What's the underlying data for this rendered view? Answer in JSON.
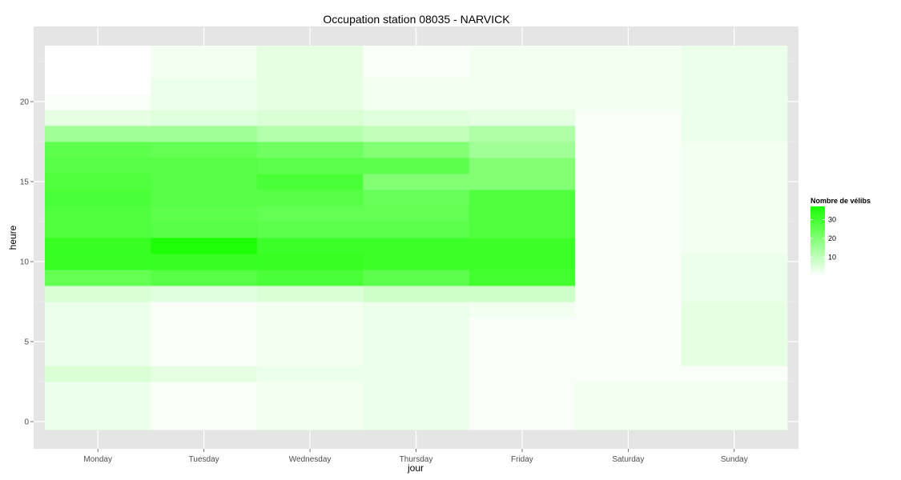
{
  "chart_data": {
    "type": "heatmap",
    "title": "Occupation station 08035 - NARVICK",
    "xlabel": "jour",
    "ylabel": "heure",
    "x_categories": [
      "Monday",
      "Tuesday",
      "Wednesday",
      "Thursday",
      "Friday",
      "Saturday",
      "Sunday"
    ],
    "y_hours": [
      0,
      1,
      2,
      3,
      4,
      5,
      6,
      7,
      8,
      9,
      10,
      11,
      12,
      13,
      14,
      15,
      16,
      17,
      18,
      19,
      20,
      21,
      22,
      23
    ],
    "y_ticks": [
      0,
      5,
      10,
      15,
      20
    ],
    "ylim": [
      -0.5,
      23.5
    ],
    "values_by_day": {
      "Monday": [
        3,
        3,
        3,
        6,
        3,
        3,
        3,
        3,
        6,
        25,
        32,
        32,
        28,
        28,
        29,
        28,
        27,
        26,
        15,
        4,
        1,
        0,
        0,
        0
      ],
      "Tuesday": [
        1,
        1,
        1,
        4,
        1,
        1,
        1,
        1,
        5,
        27,
        32,
        36,
        27,
        26,
        27,
        27,
        27,
        25,
        15,
        5,
        3,
        3,
        2,
        2
      ],
      "Wednesday": [
        2,
        2,
        2,
        3,
        2,
        2,
        2,
        2,
        6,
        29,
        32,
        31,
        26,
        25,
        27,
        29,
        26,
        23,
        12,
        6,
        4,
        4,
        4,
        4
      ],
      "Thursday": [
        3,
        3,
        3,
        3,
        3,
        3,
        3,
        3,
        8,
        26,
        31,
        31,
        26,
        25,
        24,
        20,
        26,
        20,
        10,
        5,
        2,
        2,
        1,
        1
      ],
      "Friday": [
        1,
        1,
        1,
        1,
        1,
        1,
        1,
        2,
        8,
        30,
        31,
        31,
        28,
        28,
        28,
        20,
        20,
        15,
        13,
        4,
        2,
        2,
        2,
        2
      ],
      "Saturday": [
        2,
        2,
        2,
        1,
        1,
        1,
        1,
        1,
        1,
        1,
        1,
        1,
        1,
        1,
        1,
        1,
        1,
        1,
        1,
        1,
        2,
        2,
        2,
        2
      ],
      "Sunday": [
        2,
        2,
        2,
        1,
        4,
        4,
        4,
        4,
        3,
        3,
        3,
        2,
        2,
        2,
        2,
        2,
        2,
        2,
        3,
        3,
        3,
        3,
        3,
        3
      ]
    },
    "color_scale": {
      "low": "#ffffff",
      "high": "#18ff00",
      "min": 0,
      "max": 37
    },
    "legend": {
      "title": "Nombre de vélibs",
      "ticks": [
        10,
        20,
        30
      ],
      "placement": "right"
    },
    "grid": true,
    "background": "#e5e5e5"
  }
}
